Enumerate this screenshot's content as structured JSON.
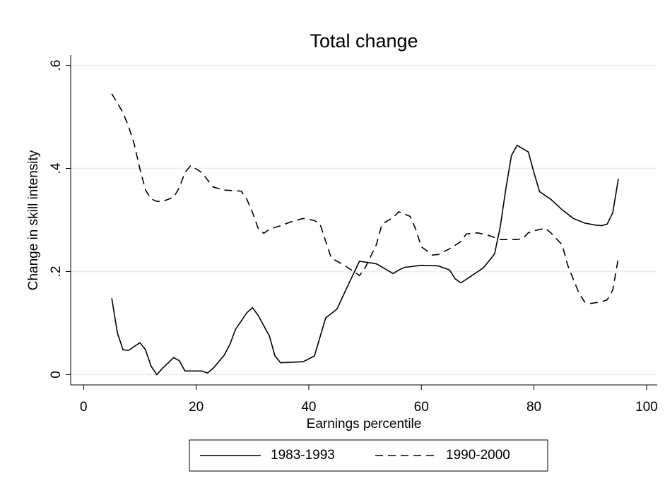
{
  "chart_data": {
    "type": "line",
    "title": "Total change",
    "x_label": "Earnings percentile",
    "y_label": "Change in skill intensity",
    "xlim": [
      -2.3,
      101.9
    ],
    "ylim": [
      -0.02,
      0.62
    ],
    "xticks": [
      0,
      20,
      40,
      60,
      80,
      100
    ],
    "yticks": [
      0,
      {
        "value": 0.2,
        "label": ".2"
      },
      {
        "value": 0.4,
        "label": ".4"
      },
      {
        "value": 0.6,
        "label": ".6"
      }
    ],
    "grid": true,
    "legend": "bottom",
    "series": [
      {
        "name": "1983-1993",
        "color": "#000000",
        "line_style": "solid",
        "x": [
          5,
          6,
          7,
          8,
          10,
          11,
          12,
          13,
          14,
          16,
          17,
          18,
          21,
          22,
          23,
          25,
          26,
          27,
          29,
          30,
          31,
          33,
          34,
          35,
          39,
          41,
          43,
          45,
          47,
          49,
          52,
          55,
          56,
          57,
          60,
          63,
          65,
          66,
          67,
          68,
          71,
          73,
          74,
          75,
          76,
          77,
          79,
          80,
          81,
          83,
          85,
          87,
          89,
          91,
          92,
          93,
          94,
          95
        ],
        "values": [
          0.148,
          0.081,
          0.048,
          0.047,
          0.062,
          0.048,
          0.016,
          0.0,
          0.012,
          0.033,
          0.027,
          0.007,
          0.007,
          0.003,
          0.012,
          0.038,
          0.059,
          0.088,
          0.12,
          0.13,
          0.115,
          0.075,
          0.036,
          0.023,
          0.025,
          0.036,
          0.11,
          0.127,
          0.174,
          0.22,
          0.215,
          0.196,
          0.203,
          0.208,
          0.212,
          0.211,
          0.203,
          0.186,
          0.178,
          0.185,
          0.207,
          0.234,
          0.286,
          0.36,
          0.425,
          0.445,
          0.432,
          0.392,
          0.355,
          0.34,
          0.32,
          0.303,
          0.294,
          0.29,
          0.289,
          0.292,
          0.314,
          0.38
        ]
      },
      {
        "name": "1990-2000",
        "color": "#000000",
        "line_style": "dashed",
        "x": [
          5,
          6,
          7,
          8,
          9,
          10,
          11,
          12,
          13,
          14,
          16,
          17,
          18,
          19,
          20,
          21,
          23,
          25,
          28,
          29,
          30,
          31,
          32,
          33,
          35,
          37,
          39,
          41,
          42,
          43,
          44,
          46,
          48,
          49,
          50,
          52,
          53,
          55,
          56,
          58,
          59,
          60,
          62,
          63,
          65,
          67,
          68,
          70,
          72,
          74,
          77,
          78,
          79,
          80,
          82,
          83,
          85,
          86,
          87,
          88,
          89,
          90,
          92,
          93,
          94,
          95
        ],
        "values": [
          0.545,
          0.527,
          0.508,
          0.481,
          0.447,
          0.399,
          0.358,
          0.341,
          0.336,
          0.336,
          0.344,
          0.363,
          0.392,
          0.405,
          0.399,
          0.392,
          0.364,
          0.358,
          0.356,
          0.34,
          0.315,
          0.284,
          0.274,
          0.282,
          0.289,
          0.297,
          0.303,
          0.299,
          0.292,
          0.259,
          0.226,
          0.214,
          0.2,
          0.192,
          0.207,
          0.252,
          0.292,
          0.305,
          0.316,
          0.307,
          0.282,
          0.248,
          0.232,
          0.233,
          0.244,
          0.258,
          0.273,
          0.275,
          0.27,
          0.262,
          0.262,
          0.264,
          0.275,
          0.279,
          0.284,
          0.275,
          0.252,
          0.212,
          0.185,
          0.158,
          0.141,
          0.138,
          0.141,
          0.145,
          0.164,
          0.227
        ]
      }
    ]
  }
}
